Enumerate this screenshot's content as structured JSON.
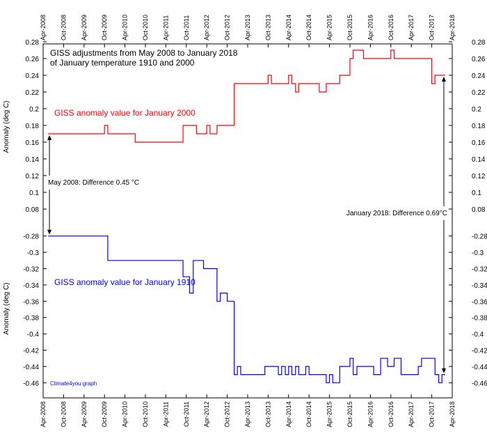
{
  "chart_data": [
    {
      "type": "line",
      "panel": "top",
      "title": "GISS adjustments from May 2008 to January 2018\nof January temperature 1910 and 2000",
      "ylabel": "Anomaly (deg C)",
      "ylim": [
        0.08,
        0.28
      ],
      "yticks": [
        "0.28",
        "0.26",
        "0.24",
        "0.22",
        "0.2",
        "0.18",
        "0.16",
        "0.14",
        "0.12",
        "0.1",
        "0.08"
      ],
      "series": [
        {
          "name": "GISS anomaly value for January 2000",
          "color": "#ff0000",
          "step": true,
          "points": [
            [
              "2008.37",
              0.17
            ],
            [
              "2009.75",
              0.18
            ],
            [
              "2009.83",
              0.17
            ],
            [
              "2010.5",
              0.16
            ],
            [
              "2011.67",
              0.18
            ],
            [
              "2012.0",
              0.17
            ],
            [
              "2012.25",
              0.18
            ],
            [
              "2012.33",
              0.17
            ],
            [
              "2012.5",
              0.18
            ],
            [
              "2012.92",
              0.23
            ],
            [
              "2013.75",
              0.24
            ],
            [
              "2013.83",
              0.23
            ],
            [
              "2014.25",
              0.24
            ],
            [
              "2014.33",
              0.23
            ],
            [
              "2014.42",
              0.22
            ],
            [
              "2014.5",
              0.23
            ],
            [
              "2015.0",
              0.22
            ],
            [
              "2015.17",
              0.23
            ],
            [
              "2015.5",
              0.24
            ],
            [
              "2015.75",
              0.26
            ],
            [
              "2015.83",
              0.27
            ],
            [
              "2016.08",
              0.26
            ],
            [
              "2016.75",
              0.27
            ],
            [
              "2016.83",
              0.26
            ],
            [
              "2017.75",
              0.23
            ],
            [
              "2017.83",
              0.24
            ],
            [
              "2018.08",
              0.24
            ]
          ]
        }
      ],
      "annotations": [
        {
          "text": "May 2008: Difference 0.45 °C"
        },
        {
          "text": "January 2018: Difference 0.69°C"
        }
      ]
    },
    {
      "type": "line",
      "panel": "bottom",
      "ylabel": "Anomaly (deg C)",
      "ylim": [
        -0.47,
        -0.27
      ],
      "yticks": [
        "-0.28",
        "-0.3",
        "-0.32",
        "-0.34",
        "-0.36",
        "-0.38",
        "-0.4",
        "-0.42",
        "-0.44",
        "-0.46"
      ],
      "series": [
        {
          "name": "GISS anomaly value for January 1910",
          "color": "#0000ff",
          "step": true,
          "points": [
            [
              "2008.37",
              -0.28
            ],
            [
              "2009.83",
              -0.31
            ],
            [
              "2011.67",
              -0.33
            ],
            [
              "2011.83",
              -0.35
            ],
            [
              "2011.92",
              -0.31
            ],
            [
              "2012.17",
              -0.32
            ],
            [
              "2012.5",
              -0.36
            ],
            [
              "2012.58",
              -0.35
            ],
            [
              "2012.75",
              -0.36
            ],
            [
              "2012.92",
              -0.45
            ],
            [
              "2013.0",
              -0.44
            ],
            [
              "2013.08",
              -0.45
            ],
            [
              "2013.67",
              -0.44
            ],
            [
              "2014.0",
              -0.45
            ],
            [
              "2014.08",
              -0.44
            ],
            [
              "2014.17",
              -0.45
            ],
            [
              "2014.25",
              -0.44
            ],
            [
              "2014.33",
              -0.45
            ],
            [
              "2014.42",
              -0.44
            ],
            [
              "2014.5",
              -0.45
            ],
            [
              "2014.67",
              -0.44
            ],
            [
              "2014.75",
              -0.45
            ],
            [
              "2015.17",
              -0.46
            ],
            [
              "2015.25",
              -0.45
            ],
            [
              "2015.33",
              -0.46
            ],
            [
              "2015.5",
              -0.44
            ],
            [
              "2015.75",
              -0.43
            ],
            [
              "2015.83",
              -0.45
            ],
            [
              "2015.92",
              -0.44
            ],
            [
              "2016.33",
              -0.45
            ],
            [
              "2016.5",
              -0.43
            ],
            [
              "2016.67",
              -0.44
            ],
            [
              "2016.83",
              -0.43
            ],
            [
              "2017.0",
              -0.45
            ],
            [
              "2017.42",
              -0.44
            ],
            [
              "2017.5",
              -0.43
            ],
            [
              "2017.83",
              -0.45
            ],
            [
              "2017.92",
              -0.46
            ],
            [
              "2018.0",
              -0.45
            ],
            [
              "2018.08",
              -0.45
            ]
          ]
        }
      ],
      "annotations": [
        {
          "text": "Climate4you graph"
        }
      ]
    }
  ],
  "x_axis": {
    "min": "2008.25",
    "max": "2018.25",
    "tick_labels": [
      "Apr-2008",
      "Oct-2008",
      "Apr-2009",
      "Oct-2009",
      "Apr-2010",
      "Oct-2010",
      "Apr-2011",
      "Oct-2011",
      "Apr-2012",
      "Oct-2012",
      "Apr-2013",
      "Oct-2013",
      "Apr-2014",
      "Oct-2014",
      "Apr-2015",
      "Oct-2015",
      "Apr-2016",
      "Oct-2016",
      "Apr-2017",
      "Oct-2017",
      "Apr-2018"
    ]
  }
}
